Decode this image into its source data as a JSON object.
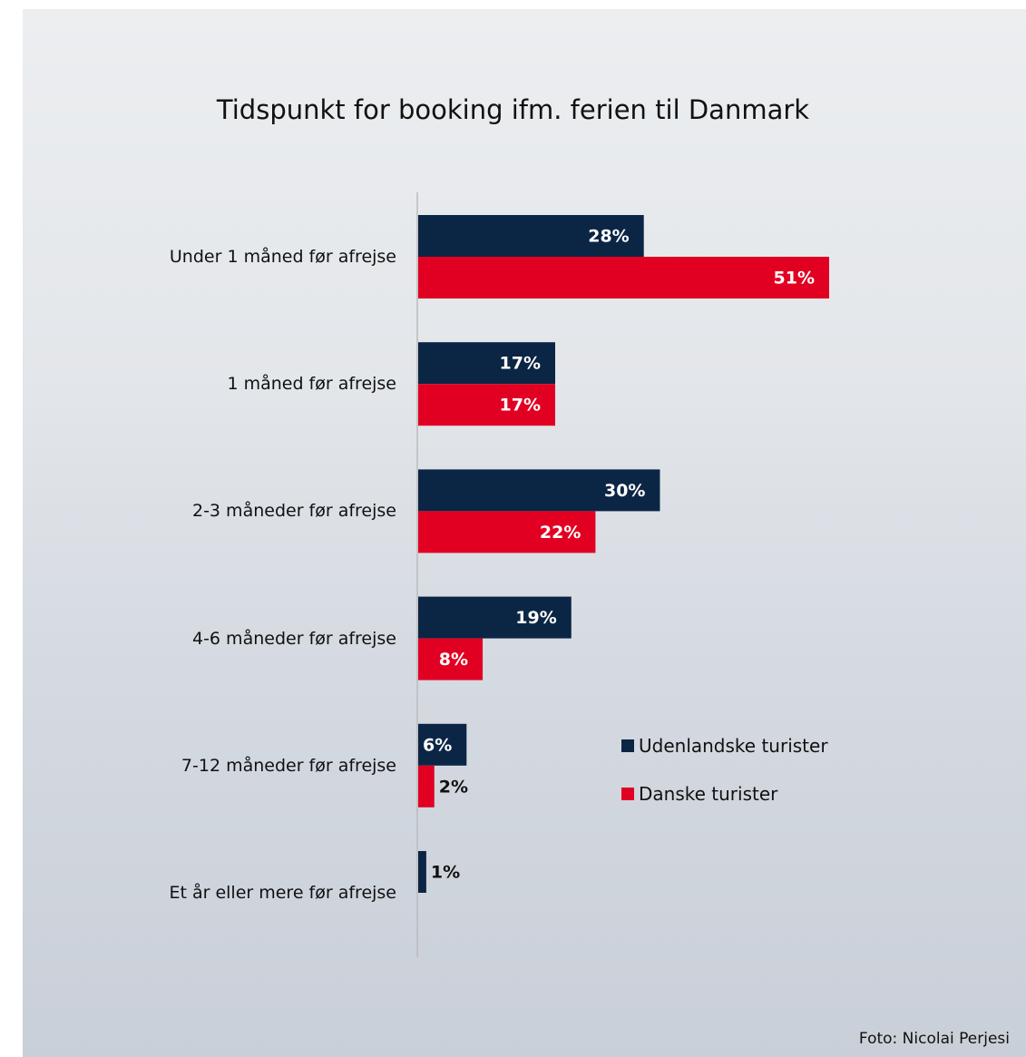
{
  "chart_data": {
    "type": "bar",
    "orientation": "horizontal",
    "title": "Tidspunkt for booking ifm. ferien til Danmark",
    "categories": [
      "Under 1 måned før afrejse",
      "1 måned før afrejse",
      "2-3 måneder før afrejse",
      "4-6 måneder før afrejse",
      "7-12 måneder før afrejse",
      "Et år eller mere før afrejse"
    ],
    "series": [
      {
        "name": "Udenlandske turister",
        "color": "#0b2545",
        "values": [
          28,
          17,
          30,
          19,
          6,
          1
        ],
        "value_labels": [
          "28%",
          "17%",
          "30%",
          "19%",
          "6%",
          "1%"
        ]
      },
      {
        "name": "Danske turister",
        "color": "#e10022",
        "values": [
          51,
          17,
          22,
          8,
          2,
          null
        ],
        "value_labels": [
          "51%",
          "17%",
          "22%",
          "8%",
          "2%",
          null
        ]
      }
    ],
    "credit": "Foto: Nicolai Perjesi"
  }
}
